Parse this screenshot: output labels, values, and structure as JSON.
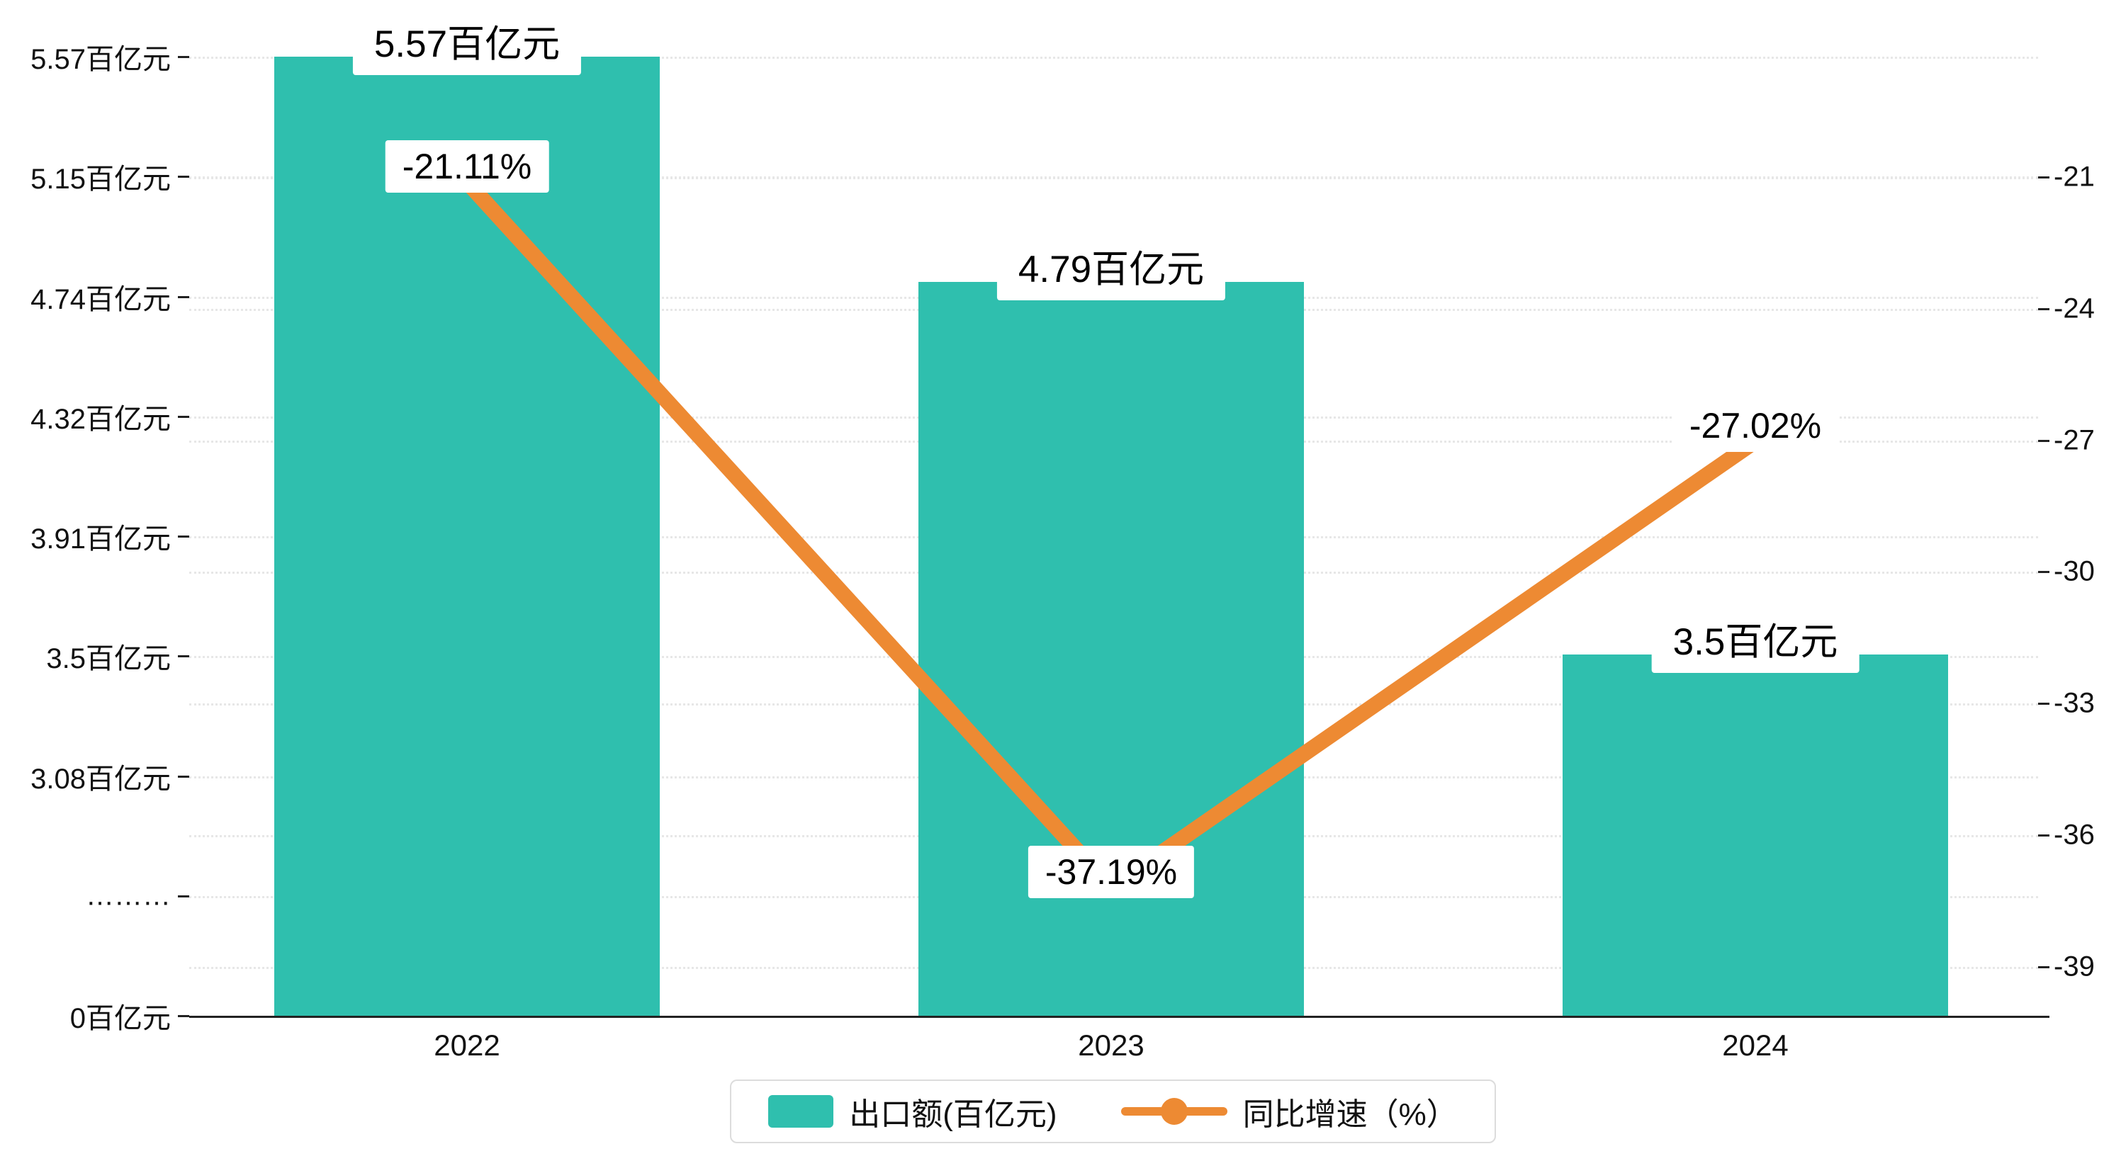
{
  "chart_data": {
    "type": "bar+line",
    "title": "",
    "categories": [
      "2022",
      "2023",
      "2024"
    ],
    "series": [
      {
        "name": "出口额(百亿元)",
        "type": "bar",
        "axis": "left",
        "unit": "百亿元",
        "values": [
          5.57,
          4.79,
          3.5
        ],
        "color": "#2fbfae"
      },
      {
        "name": "同比增速（%）",
        "type": "line",
        "axis": "right",
        "unit": "%",
        "values": [
          -21.11,
          -37.19,
          -27.02
        ],
        "color": "#ed8a33"
      }
    ],
    "bar_value_labels": [
      "5.57百亿元",
      "4.79百亿元",
      "3.5百亿元"
    ],
    "line_point_labels": [
      "-21.11%",
      "-37.19%",
      "-27.02%"
    ],
    "left_axis_tick_labels": [
      "5.57百亿元",
      "5.15百亿元",
      "4.74百亿元",
      "4.32百亿元",
      "3.91百亿元",
      "3.5百亿元",
      "3.08百亿元",
      "………",
      "0百亿元"
    ],
    "right_axis_tick_labels": [
      "-21",
      "-24",
      "-27",
      "-30",
      "-33",
      "-36",
      "-39"
    ],
    "right_axis_range": [
      -39,
      -21
    ],
    "left_axis_break": true,
    "grid": true,
    "legend_position": "bottom",
    "colors": {
      "bar": "#2fbfae",
      "line": "#ed8a33",
      "label_background": "#ffffff",
      "grid": "#e7e7e7",
      "axis": "#222222"
    }
  },
  "legend": {
    "bar_label": "出口额(百亿元)",
    "line_label": "同比增速（%）"
  }
}
